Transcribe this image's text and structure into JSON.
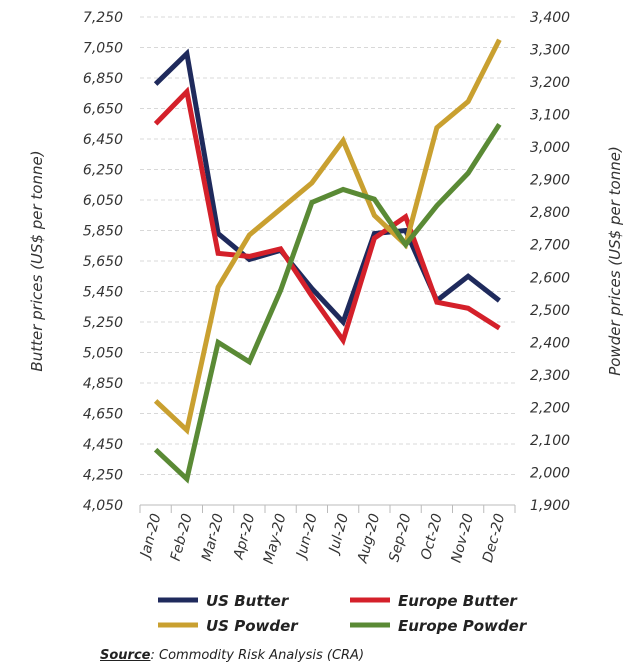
{
  "chart_data": {
    "type": "line",
    "title": "",
    "categories": [
      "Jan-20",
      "Feb-20",
      "Mar-20",
      "Apr-20",
      "May-20",
      "Jun-20",
      "Jul-20",
      "Aug-20",
      "Sep-20",
      "Oct-20",
      "Nov-20",
      "Dec-20"
    ],
    "ylabel": "Butter prices (US$ per tonne)",
    "y2label": "Powder prices (US$ per tonne)",
    "ylim": [
      4050,
      7250
    ],
    "y2lim": [
      1900,
      3400
    ],
    "yticks": [
      "4,050",
      "4,250",
      "4,450",
      "4,650",
      "4,850",
      "5,050",
      "5,250",
      "5,450",
      "5,650",
      "5,850",
      "6,050",
      "6,250",
      "6,450",
      "6,650",
      "6,850",
      "7,050",
      "7,250"
    ],
    "y2ticks": [
      "1,900",
      "2,000",
      "2,100",
      "2,200",
      "2,300",
      "2,400",
      "2,500",
      "2,600",
      "2,700",
      "2,800",
      "2,900",
      "3,000",
      "3,100",
      "3,200",
      "3,300",
      "3,400"
    ],
    "grid": true,
    "legend_position": "bottom",
    "series": [
      {
        "name": "US Butter",
        "axis": "left",
        "color": "#1f2a5c",
        "values": [
          6810,
          7010,
          5830,
          5660,
          5720,
          5470,
          5250,
          5830,
          5850,
          5390,
          5550,
          5390
        ]
      },
      {
        "name": "Europe Butter",
        "axis": "left",
        "color": "#d4202a",
        "values": [
          6550,
          6760,
          5700,
          5680,
          5730,
          5420,
          5130,
          5800,
          5940,
          5380,
          5340,
          5210
        ]
      },
      {
        "name": "US Powder",
        "axis": "right",
        "color": "#c9a030",
        "values": [
          2220,
          2130,
          2570,
          2730,
          2810,
          2890,
          3020,
          2790,
          2700,
          3060,
          3140,
          3330
        ]
      },
      {
        "name": "Europe Powder",
        "axis": "right",
        "color": "#5a8a35",
        "values": [
          2070,
          1980,
          2400,
          2340,
          2560,
          2830,
          2870,
          2840,
          2700,
          2820,
          2920,
          3070
        ]
      }
    ]
  },
  "source": {
    "label": "Source",
    "text": ": Commodity Risk Analysis (CRA)"
  }
}
